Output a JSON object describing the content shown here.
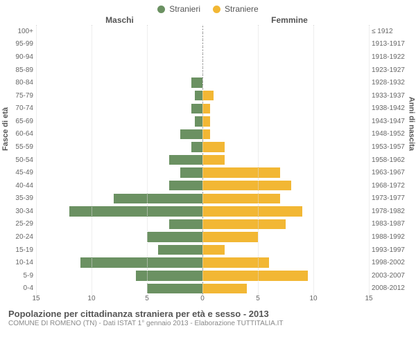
{
  "legend": {
    "male": {
      "label": "Stranieri",
      "color": "#6b9162"
    },
    "female": {
      "label": "Straniere",
      "color": "#f2b734"
    }
  },
  "headers": {
    "left": "Maschi",
    "right": "Femmine"
  },
  "axis_titles": {
    "left": "Fasce di età",
    "right": "Anni di nascita"
  },
  "x": {
    "max": 15,
    "ticks_left": [
      15,
      10,
      5,
      0
    ],
    "ticks_right": [
      0,
      5,
      10,
      15
    ]
  },
  "colors": {
    "male_bar": "#6b9162",
    "female_bar": "#f2b734",
    "grid": "#dddddd",
    "center": "#666666",
    "bg": "#ffffff"
  },
  "fontsize": {
    "tick": 10,
    "header": 12,
    "legend": 12,
    "title": 13,
    "subtitle": 10
  },
  "rows": [
    {
      "age": "100+",
      "birth": "≤ 1912",
      "m": 0,
      "f": 0
    },
    {
      "age": "95-99",
      "birth": "1913-1917",
      "m": 0,
      "f": 0
    },
    {
      "age": "90-94",
      "birth": "1918-1922",
      "m": 0,
      "f": 0
    },
    {
      "age": "85-89",
      "birth": "1923-1927",
      "m": 0,
      "f": 0
    },
    {
      "age": "80-84",
      "birth": "1928-1932",
      "m": 1,
      "f": 0
    },
    {
      "age": "75-79",
      "birth": "1933-1937",
      "m": 0.7,
      "f": 1
    },
    {
      "age": "70-74",
      "birth": "1938-1942",
      "m": 1,
      "f": 0.7
    },
    {
      "age": "65-69",
      "birth": "1943-1947",
      "m": 0.7,
      "f": 0.7
    },
    {
      "age": "60-64",
      "birth": "1948-1952",
      "m": 2,
      "f": 0.7
    },
    {
      "age": "55-59",
      "birth": "1953-1957",
      "m": 1,
      "f": 2
    },
    {
      "age": "50-54",
      "birth": "1958-1962",
      "m": 3,
      "f": 2
    },
    {
      "age": "45-49",
      "birth": "1963-1967",
      "m": 2,
      "f": 7
    },
    {
      "age": "40-44",
      "birth": "1968-1972",
      "m": 3,
      "f": 8
    },
    {
      "age": "35-39",
      "birth": "1973-1977",
      "m": 8,
      "f": 7
    },
    {
      "age": "30-34",
      "birth": "1978-1982",
      "m": 12,
      "f": 9
    },
    {
      "age": "25-29",
      "birth": "1983-1987",
      "m": 3,
      "f": 7.5
    },
    {
      "age": "20-24",
      "birth": "1988-1992",
      "m": 5,
      "f": 5
    },
    {
      "age": "15-19",
      "birth": "1993-1997",
      "m": 4,
      "f": 2
    },
    {
      "age": "10-14",
      "birth": "1998-2002",
      "m": 11,
      "f": 6
    },
    {
      "age": "5-9",
      "birth": "2003-2007",
      "m": 6,
      "f": 9.5
    },
    {
      "age": "0-4",
      "birth": "2008-2012",
      "m": 5,
      "f": 4
    }
  ],
  "footer": {
    "title": "Popolazione per cittadinanza straniera per età e sesso - 2013",
    "subtitle": "COMUNE DI ROMENO (TN) - Dati ISTAT 1° gennaio 2013 - Elaborazione TUTTITALIA.IT"
  }
}
